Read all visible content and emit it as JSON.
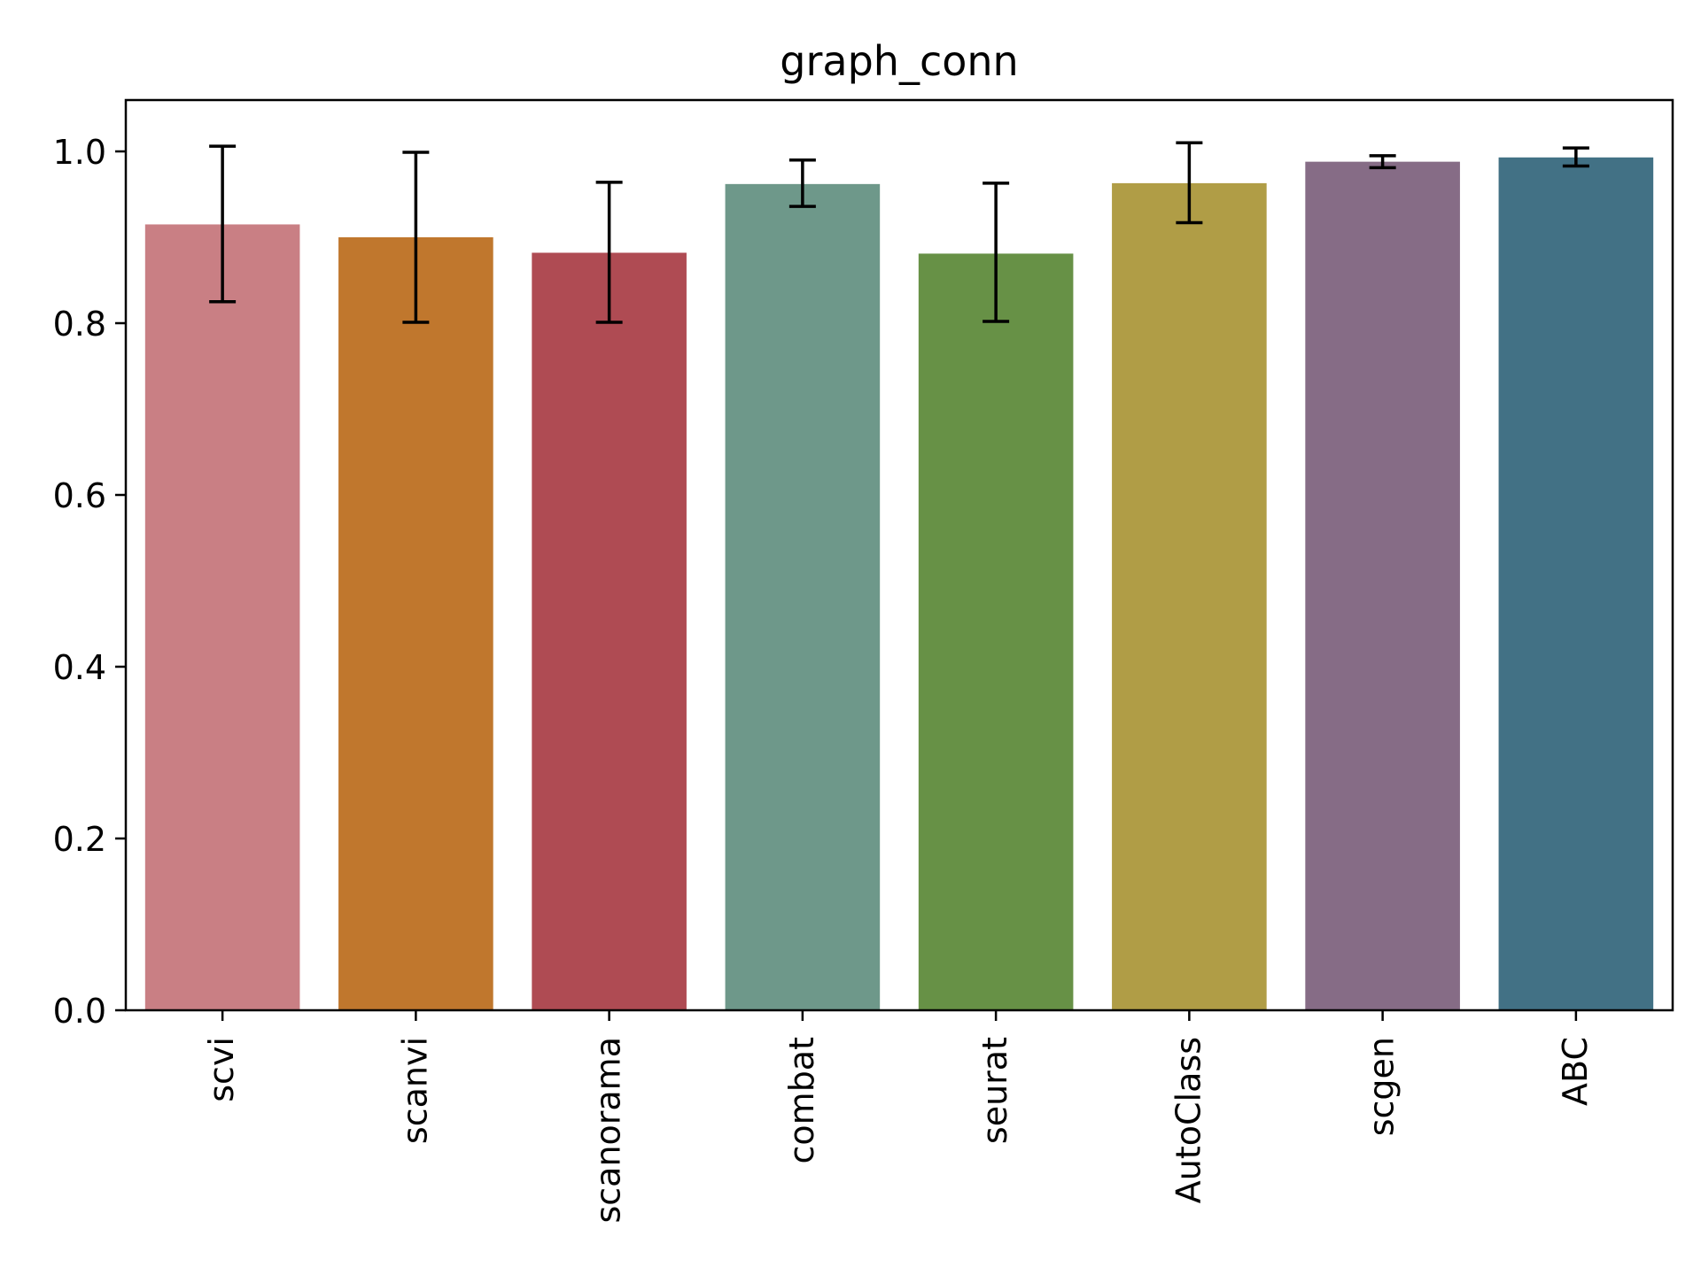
{
  "chart_data": {
    "type": "bar",
    "title": "graph_conn",
    "xlabel": "",
    "ylabel": "",
    "ylim": [
      0,
      1.06
    ],
    "yticks": [
      "0.0",
      "0.2",
      "0.4",
      "0.6",
      "0.8",
      "1.0"
    ],
    "categories": [
      "scvi",
      "scanvi",
      "scanorama",
      "combat",
      "seurat",
      "AutoClass",
      "scgen",
      "ABC"
    ],
    "values": [
      0.915,
      0.9,
      0.882,
      0.962,
      0.881,
      0.963,
      0.988,
      0.993
    ],
    "error_low": [
      0.825,
      0.801,
      0.801,
      0.936,
      0.802,
      0.917,
      0.981,
      0.983
    ],
    "error_high": [
      1.006,
      0.999,
      0.964,
      0.99,
      0.963,
      1.01,
      0.995,
      1.004
    ],
    "colors": [
      "#c97f84",
      "#c0772d",
      "#af4b53",
      "#6e988a",
      "#679146",
      "#b09d46",
      "#866c86",
      "#427185"
    ],
    "grid": false,
    "legend": "none"
  }
}
